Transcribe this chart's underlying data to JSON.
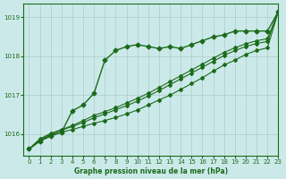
{
  "background_color": "#cce9e9",
  "plot_bg_color": "#cce9e9",
  "grid_color": "#aacccc",
  "line_color": "#1a6b1a",
  "xlabel": "Graphe pression niveau de la mer (hPa)",
  "xlim": [
    -0.5,
    23
  ],
  "ylim": [
    1015.45,
    1019.35
  ],
  "yticks": [
    1016,
    1017,
    1018,
    1019
  ],
  "xticks": [
    0,
    1,
    2,
    3,
    4,
    5,
    6,
    7,
    8,
    9,
    10,
    11,
    12,
    13,
    14,
    15,
    16,
    17,
    18,
    19,
    20,
    21,
    22,
    23
  ],
  "series": [
    {
      "y": [
        1015.62,
        1015.82,
        1015.95,
        1016.05,
        1016.6,
        1016.75,
        1017.05,
        1017.9,
        1018.15,
        1018.25,
        1018.3,
        1018.25,
        1018.2,
        1018.25,
        1018.2,
        1018.3,
        1018.4,
        1018.5,
        1018.55,
        1018.65,
        1018.65,
        1018.65,
        1018.65,
        1019.15
      ],
      "marker": "D",
      "marker_size": 2.5,
      "lw": 1.0,
      "zorder": 5
    },
    {
      "y": [
        1015.62,
        1015.82,
        1015.98,
        1016.05,
        1016.12,
        1016.2,
        1016.28,
        1016.35,
        1016.43,
        1016.52,
        1016.62,
        1016.75,
        1016.88,
        1017.0,
        1017.15,
        1017.3,
        1017.45,
        1017.62,
        1017.78,
        1017.9,
        1018.05,
        1018.15,
        1018.22,
        1019.15
      ],
      "marker": "D",
      "marker_size": 2.0,
      "lw": 0.8,
      "zorder": 4
    },
    {
      "y": [
        1015.62,
        1015.85,
        1016.0,
        1016.1,
        1016.2,
        1016.3,
        1016.42,
        1016.52,
        1016.63,
        1016.73,
        1016.85,
        1016.98,
        1017.12,
        1017.27,
        1017.42,
        1017.57,
        1017.72,
        1017.87,
        1018.02,
        1018.15,
        1018.25,
        1018.33,
        1018.38,
        1019.15
      ],
      "marker": "D",
      "marker_size": 2.0,
      "lw": 0.8,
      "zorder": 3
    },
    {
      "y": [
        1015.62,
        1015.88,
        1016.02,
        1016.12,
        1016.22,
        1016.35,
        1016.48,
        1016.58,
        1016.68,
        1016.8,
        1016.92,
        1017.05,
        1017.2,
        1017.35,
        1017.5,
        1017.65,
        1017.8,
        1017.95,
        1018.1,
        1018.22,
        1018.32,
        1018.4,
        1018.45,
        1019.15
      ],
      "marker": "D",
      "marker_size": 2.0,
      "lw": 0.8,
      "zorder": 2
    }
  ]
}
